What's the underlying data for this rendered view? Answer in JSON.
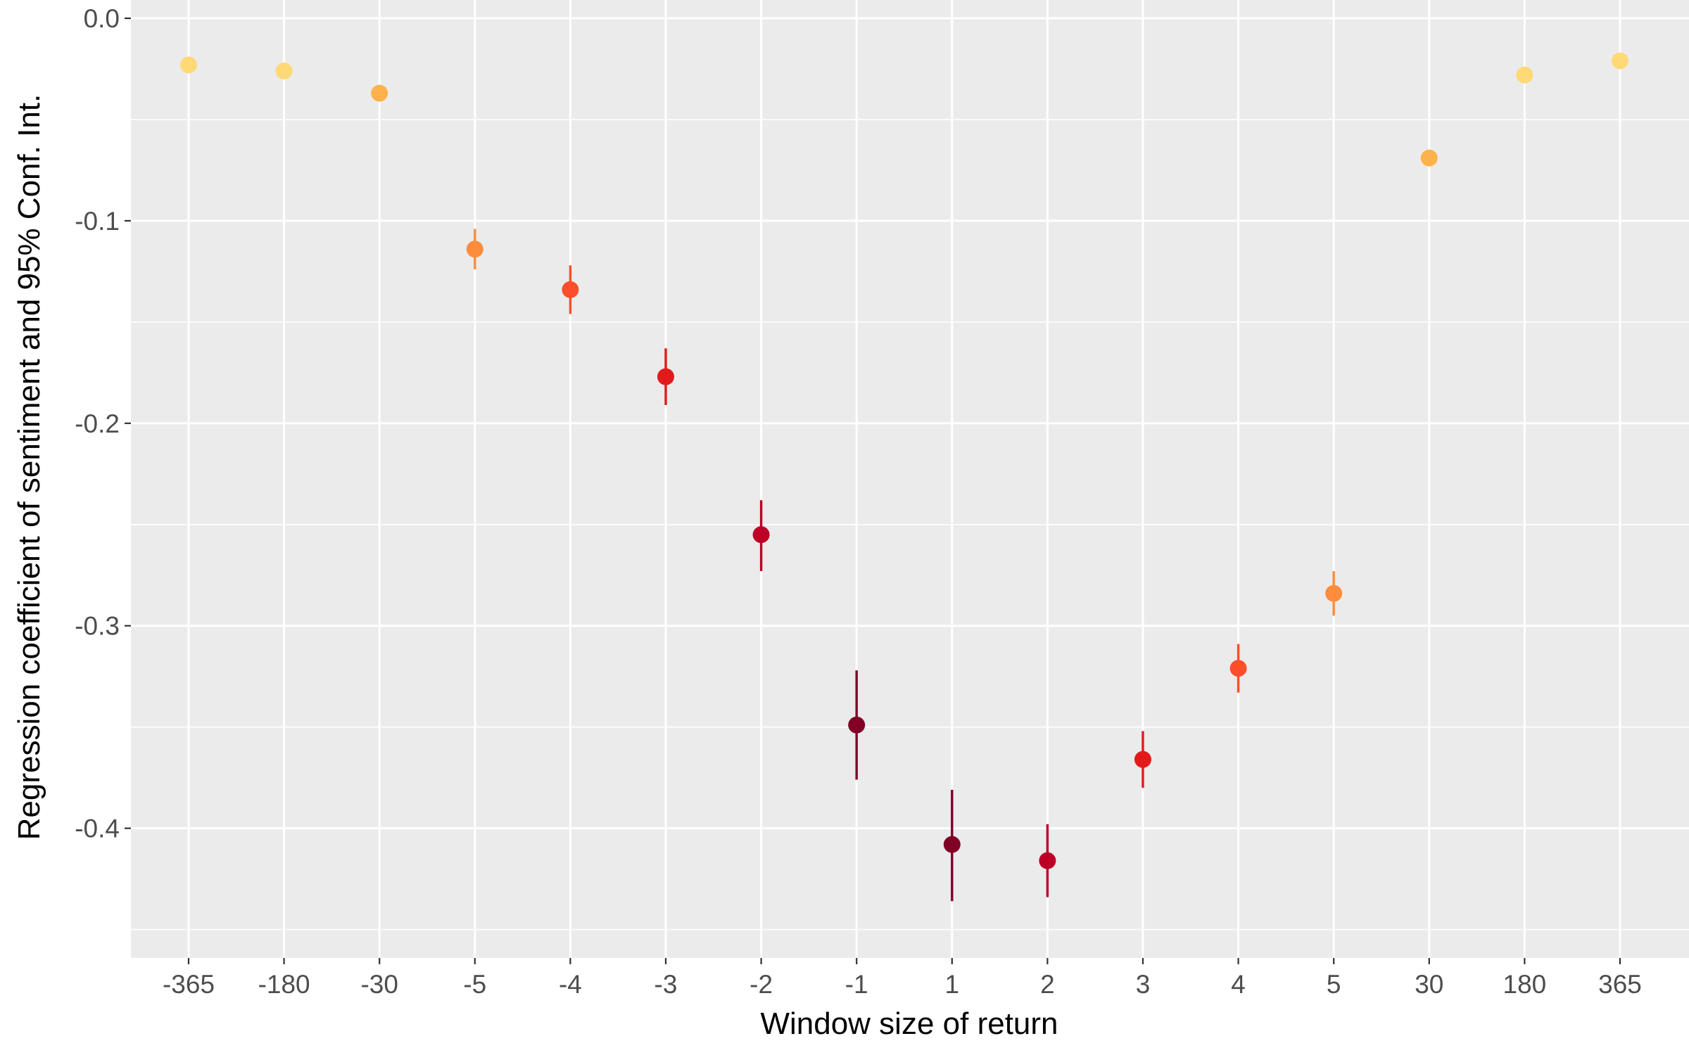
{
  "chart_data": {
    "type": "scatter",
    "title": "",
    "xlabel": "Window size of return",
    "ylabel": "Regression coefficient of sentiment and 95% Conf. Int.",
    "categories": [
      "-365",
      "-180",
      "-30",
      "-5",
      "-4",
      "-3",
      "-2",
      "-1",
      "1",
      "2",
      "3",
      "4",
      "5",
      "30",
      "180",
      "365"
    ],
    "values": [
      -0.023,
      -0.026,
      -0.037,
      -0.114,
      -0.134,
      -0.177,
      -0.255,
      -0.349,
      -0.408,
      -0.416,
      -0.366,
      -0.321,
      -0.284,
      -0.069,
      -0.028,
      -0.021
    ],
    "ci_low": [
      -0.023,
      -0.026,
      -0.037,
      -0.124,
      -0.146,
      -0.191,
      -0.273,
      -0.376,
      -0.436,
      -0.434,
      -0.38,
      -0.333,
      -0.295,
      -0.069,
      -0.028,
      -0.021
    ],
    "ci_high": [
      -0.023,
      -0.026,
      -0.037,
      -0.104,
      -0.122,
      -0.163,
      -0.238,
      -0.322,
      -0.381,
      -0.398,
      -0.352,
      -0.309,
      -0.273,
      -0.069,
      -0.028,
      -0.021
    ],
    "colors": [
      "#FED976",
      "#FED976",
      "#FDB24C",
      "#FD8D3C",
      "#FC4E2A",
      "#E31A1C",
      "#BD0026",
      "#800026",
      "#800026",
      "#BD0026",
      "#E31A1C",
      "#FC4E2A",
      "#FD8D3C",
      "#FDB24C",
      "#FED976",
      "#FED976"
    ],
    "ylim": [
      -0.455,
      0.0
    ],
    "yticks": [
      0.0,
      -0.1,
      -0.2,
      -0.3,
      -0.4
    ],
    "ytick_labels": [
      "0.0",
      "-0.1",
      "-0.2",
      "-0.3",
      "-0.4"
    ],
    "grid": true,
    "legend": "none",
    "panel_background": "#EBEBEB",
    "grid_color": "#FFFFFF"
  }
}
